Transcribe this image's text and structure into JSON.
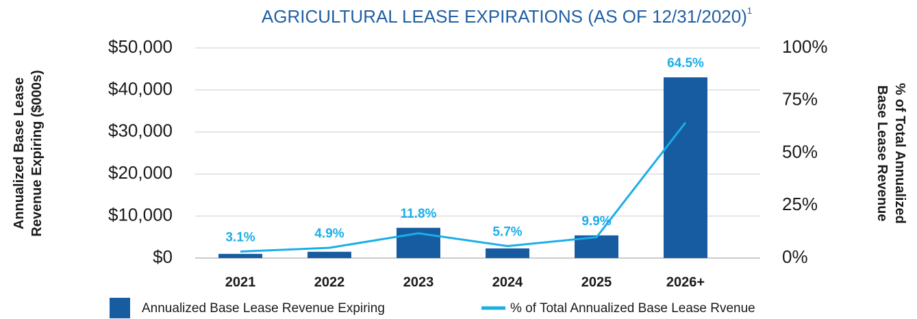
{
  "chart_data": {
    "type": "bar_line",
    "title": "AGRICULTURAL LEASE EXPIRATIONS (AS OF 12/31/2020)",
    "title_superscript": "1",
    "y_label": [
      "Annualized Base Lease",
      "Revenue Expiring ($000s)"
    ],
    "y2_label": [
      "% of Total Annualized",
      "Base Lease Revenue"
    ],
    "categories": [
      "2021",
      "2022",
      "2023",
      "2024",
      "2025",
      "2026+"
    ],
    "series": [
      {
        "name": "Annualized Base Lease Revenue Expiring",
        "type": "bar",
        "color": "#175ca0",
        "values": [
          1000,
          1500,
          7200,
          2300,
          5400,
          43000
        ]
      },
      {
        "name": "% of Total Annualized Base Lease Rvenue",
        "type": "line",
        "axis": "y2",
        "color": "#1aaee8",
        "values": [
          3.1,
          4.9,
          11.8,
          5.7,
          9.9,
          64.5
        ],
        "value_labels": [
          "3.1%",
          "4.9%",
          "11.8%",
          "5.7%",
          "9.9%",
          "64.5%"
        ]
      }
    ],
    "ylim": [
      0,
      50000
    ],
    "yticks": [
      {
        "value": 0,
        "label": "$0"
      },
      {
        "value": 10000,
        "label": "$10,000"
      },
      {
        "value": 20000,
        "label": "$20,000"
      },
      {
        "value": 30000,
        "label": "$30,000"
      },
      {
        "value": 40000,
        "label": "$40,000"
      },
      {
        "value": 50000,
        "label": "$50,000"
      }
    ],
    "y2lim": [
      0,
      100
    ],
    "y2ticks": [
      {
        "value": 0,
        "label": "0%"
      },
      {
        "value": 25,
        "label": "25%"
      },
      {
        "value": 50,
        "label": "50%"
      },
      {
        "value": 75,
        "label": "75%"
      },
      {
        "value": 100,
        "label": "100%"
      }
    ],
    "grid": true,
    "legend": "bottom"
  }
}
